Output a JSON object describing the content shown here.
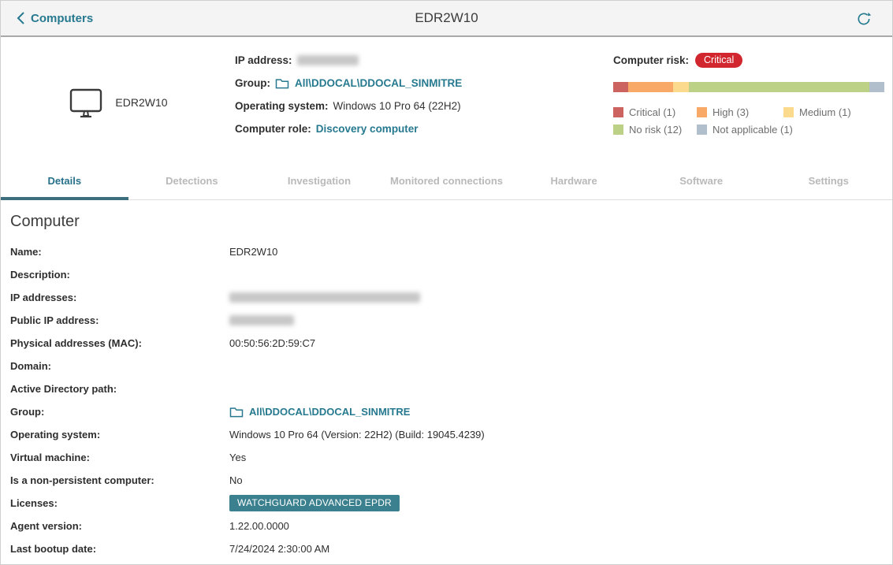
{
  "colors": {
    "teal_link": "#26798f",
    "tab_active": "#26708a",
    "risk_badge_bg": "#d2262e",
    "license_badge_bg": "#3b808e"
  },
  "topbar": {
    "back_label": "Computers",
    "title": "EDR2W10",
    "refresh_icon": "refresh-icon"
  },
  "header": {
    "computer_name": "EDR2W10",
    "ip_label": "IP address:",
    "ip_redacted": true,
    "ip_redacted_width": 78,
    "group_label": "Group:",
    "group_value": "All\\DDOCAL\\DDOCAL_SINMITRE",
    "os_label": "Operating system:",
    "os_value": "Windows 10 Pro 64 (22H2)",
    "role_label": "Computer role:",
    "role_value": "Discovery computer",
    "risk": {
      "label": "Computer risk:",
      "badge": "Critical",
      "total": 18,
      "segments": [
        {
          "name": "Critical",
          "count": 1,
          "color": "#cd6360",
          "legend": "Critical (1)"
        },
        {
          "name": "High",
          "count": 3,
          "color": "#f8a867",
          "legend": "High (3)"
        },
        {
          "name": "Medium",
          "count": 1,
          "color": "#fbd98d",
          "legend": "Medium (1)"
        },
        {
          "name": "No risk",
          "count": 12,
          "color": "#bcd086",
          "legend": "No risk (12)"
        },
        {
          "name": "Not applicable",
          "count": 1,
          "color": "#b1becc",
          "legend": "Not applicable (1)"
        }
      ]
    }
  },
  "tabs": [
    {
      "label": "Details",
      "active": true
    },
    {
      "label": "Detections",
      "active": false
    },
    {
      "label": "Investigation",
      "active": false
    },
    {
      "label": "Monitored connections",
      "active": false
    },
    {
      "label": "Hardware",
      "active": false
    },
    {
      "label": "Software",
      "active": false
    },
    {
      "label": "Settings",
      "active": false
    }
  ],
  "details": {
    "section_title": "Computer",
    "rows": [
      {
        "label": "Name:",
        "type": "text",
        "value": "EDR2W10"
      },
      {
        "label": "Description:",
        "type": "text",
        "value": ""
      },
      {
        "label": "IP addresses:",
        "type": "redacted",
        "redacted_width": 242
      },
      {
        "label": "Public IP address:",
        "type": "redacted",
        "redacted_width": 82
      },
      {
        "label": "Physical addresses (MAC):",
        "type": "text",
        "value": "00:50:56:2D:59:C7"
      },
      {
        "label": "Domain:",
        "type": "text",
        "value": ""
      },
      {
        "label": "Active Directory path:",
        "type": "text",
        "value": ""
      },
      {
        "label": "Group:",
        "type": "link-folder",
        "value": "All\\DDOCAL\\DDOCAL_SINMITRE"
      },
      {
        "label": "Operating system:",
        "type": "text",
        "value": "Windows 10 Pro 64 (Version: 22H2) (Build: 19045.4239)"
      },
      {
        "label": "Virtual machine:",
        "type": "text",
        "value": "Yes"
      },
      {
        "label": "Is a non-persistent computer:",
        "type": "text",
        "value": "No"
      },
      {
        "label": "Licenses:",
        "type": "badge",
        "value": "WATCHGUARD ADVANCED EPDR"
      },
      {
        "label": "Agent version:",
        "type": "text",
        "value": "1.22.00.0000"
      },
      {
        "label": "Last bootup date:",
        "type": "text",
        "value": "7/24/2024 2:30:00 AM"
      }
    ]
  }
}
